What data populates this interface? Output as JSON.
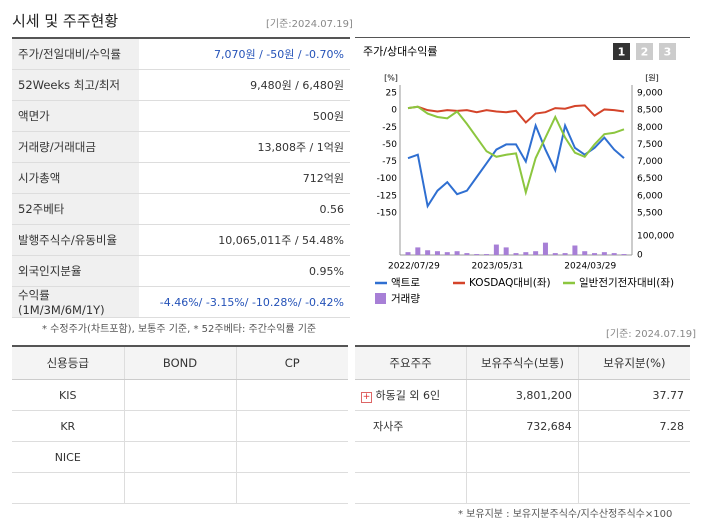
{
  "header": {
    "title": "시세 및 주주현황",
    "date": "[기준:2024.07.19]"
  },
  "price_table": {
    "rows": [
      {
        "label": "주가/전일대비/수익률",
        "value": "7,070원 / -50원 / -0.70%"
      },
      {
        "label": "52Weeks 최고/최저",
        "value": "9,480원 / 6,480원"
      },
      {
        "label": "액면가",
        "value": "500원"
      },
      {
        "label": "거래량/거래대금",
        "value": "13,808주 / 1억원"
      },
      {
        "label": "시가총액",
        "value": "712억원"
      },
      {
        "label": "52주베타",
        "value": "0.56"
      },
      {
        "label": "발행주식수/유동비율",
        "value": "10,065,011주 / 54.48%"
      },
      {
        "label": "외국인지분율",
        "value": "0.95%"
      },
      {
        "label": "수익률 (1M/3M/6M/1Y)",
        "value": "-4.46%/ -3.15%/ -10.28%/ -0.42%"
      }
    ]
  },
  "price_note": "* 수정주가(차트포함), 보통주 기준, * 52주베타: 주간수익률 기준",
  "chart": {
    "type": "line",
    "title": "주가/상대수익률",
    "tabs": [
      "1",
      "2",
      "3"
    ],
    "y_unit": "[%]",
    "y2_unit": "[원]",
    "ylim": [
      -150,
      25
    ],
    "yticks": [
      25,
      0,
      -25,
      -50,
      -75,
      -100,
      -125,
      -150
    ],
    "y2lim": [
      5500,
      9000
    ],
    "y2ticks": [
      {
        "value": 9000,
        "label": "9,000"
      },
      {
        "value": 8500,
        "label": "8,500"
      },
      {
        "value": 8000,
        "label": "8,000"
      },
      {
        "value": 7500,
        "label": "7,500"
      },
      {
        "value": 7000,
        "label": "7,000"
      },
      {
        "value": 6500,
        "label": "6,500"
      },
      {
        "value": 6000,
        "label": "6,000"
      },
      {
        "value": 5500,
        "label": "5,500"
      }
    ],
    "volume_lim": [
      0,
      100000
    ],
    "volume_ticks": [
      {
        "value": 100000,
        "label": "100,000"
      },
      0
    ],
    "x_labels": [
      "2022/07/29",
      "2023/05/31",
      "2024/03/29"
    ],
    "series": [
      {
        "name": "액트로",
        "color": "#2f6fd1",
        "axis": "y2",
        "values": [
          7100,
          7200,
          5700,
          6150,
          6400,
          6050,
          6150,
          6550,
          6950,
          7350,
          7500,
          7500,
          7000,
          8050,
          7350,
          6750,
          8050,
          7400,
          7200,
          7400,
          7700,
          7350,
          7100
        ]
      },
      {
        "name": "KOSDAQ대비(좌)",
        "color": "#d4442a",
        "values": [
          3,
          5,
          0,
          -2,
          0,
          -1,
          0,
          -3,
          0,
          -2,
          -3,
          -1,
          -18,
          -5,
          -3,
          3,
          2,
          6,
          7,
          -8,
          1,
          0,
          -2
        ]
      },
      {
        "name": "일반전기전자대비(좌)",
        "color": "#8cc63f",
        "values": [
          3,
          5,
          -5,
          -10,
          -12,
          -2,
          -20,
          -40,
          -60,
          -68,
          -65,
          -63,
          -120,
          -70,
          -40,
          -10,
          -40,
          -62,
          -68,
          -50,
          -35,
          -33,
          -28
        ]
      }
    ],
    "volume": {
      "name": "거래량",
      "color": "#a77fd6",
      "values": [
        15000,
        40000,
        25000,
        20000,
        15000,
        20000,
        10000,
        5000,
        5000,
        55000,
        40000,
        10000,
        15000,
        20000,
        65000,
        10000,
        10000,
        50000,
        20000,
        10000,
        15000,
        10000,
        5000
      ]
    }
  },
  "basis_date": "[기준: 2024.07.19]",
  "credit_table": {
    "headers": [
      "신용등급",
      "BOND",
      "CP"
    ],
    "rows": [
      "KIS",
      "KR",
      "NICE"
    ]
  },
  "holders_table": {
    "headers": [
      "주요주주",
      "보유주식수(보통)",
      "보유지분(%)"
    ],
    "rows": [
      [
        "하동길 외 6인",
        "3,801,200",
        "37.77"
      ],
      [
        "자사주",
        "732,684",
        "7.28"
      ]
    ]
  },
  "holders_note": "* 보유지분 : 보유지분주식수/지수산정주식수×100"
}
